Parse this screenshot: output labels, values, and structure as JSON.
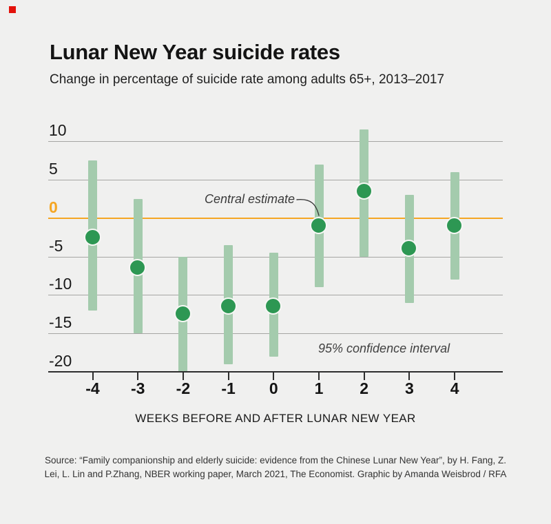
{
  "brand": {
    "red_square_color": "#e3120b"
  },
  "header": {
    "title": "Lunar New Year suicide rates",
    "subtitle": "Change in percentage of suicide rate among adults 65+, 2013–2017"
  },
  "chart_data": {
    "type": "scatter",
    "title": "Lunar New Year suicide rates",
    "subtitle": "Change in percentage of suicide rate among adults 65+, 2013–2017",
    "xlabel": "WEEKS BEFORE AND AFTER LUNAR NEW YEAR",
    "ylabel": "",
    "categories": [
      -4,
      -3,
      -2,
      -1,
      0,
      1,
      2,
      3,
      4
    ],
    "series": [
      {
        "name": "Central estimate",
        "values": [
          -2.5,
          -6.5,
          -12.5,
          -11.5,
          -11.5,
          -1,
          3.5,
          -4,
          -1
        ]
      },
      {
        "name": "95% CI upper",
        "values": [
          7.5,
          2.5,
          -5,
          -3.5,
          -4.5,
          7,
          11.5,
          3,
          6
        ]
      },
      {
        "name": "95% CI lower",
        "values": [
          -12,
          -15,
          -20,
          -19,
          -18,
          -9,
          -5,
          -11,
          -8
        ]
      }
    ],
    "yticks": [
      10,
      5,
      0,
      -5,
      -10,
      -15,
      -20
    ],
    "ylim": [
      -20,
      12
    ],
    "grid": true,
    "zero_line_value": 0,
    "colors": {
      "ci_bar": "#a4cbad",
      "dot": "#2d9753",
      "zero_line": "#f5a623",
      "gridline": "#a5a5a3",
      "axis": "#2d2d2d"
    },
    "annotations": {
      "central_estimate_label": "Central estimate",
      "confidence_interval_label": "95% confidence interval"
    }
  },
  "footer": {
    "source": "Source: “Family companionship and elderly suicide: evidence from the Chinese Lunar New Year”, by H. Fang, Z.\nLei, L. Lin and P.Zhang, NBER working paper, March 2021, The Economist. Graphic by Amanda Weisbrod / RFA"
  }
}
